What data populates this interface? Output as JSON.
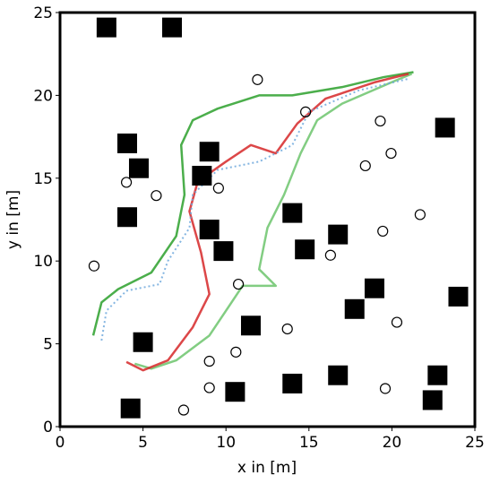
{
  "chart_data": {
    "type": "scatter",
    "x_label": "x in [m]",
    "y_label": "y in [m]",
    "xlim": [
      0,
      25
    ],
    "ylim": [
      0,
      25
    ],
    "xticks": [
      0,
      5,
      10,
      15,
      20,
      25
    ],
    "yticks": [
      0,
      5,
      10,
      15,
      20,
      25
    ],
    "squares": {
      "color": "#000000",
      "x": [
        2.8,
        6.75,
        4.05,
        4.75,
        9.0,
        8.55,
        4.05,
        9.0,
        9.85,
        14.0,
        14.75,
        16.75,
        23.2,
        18.95,
        17.75,
        24.0,
        11.5,
        5.0,
        14.0,
        16.75,
        10.55,
        22.75,
        22.45,
        4.25
      ],
      "y": [
        24.1,
        24.1,
        17.1,
        15.6,
        16.6,
        15.15,
        12.65,
        11.9,
        10.6,
        12.9,
        10.7,
        11.6,
        18.05,
        8.35,
        7.1,
        7.85,
        6.1,
        5.1,
        2.6,
        3.1,
        2.1,
        3.1,
        1.6,
        1.1
      ]
    },
    "circles": {
      "color": "#000000",
      "x": [
        11.9,
        14.8,
        19.3,
        19.95,
        18.4,
        4.0,
        5.8,
        9.55,
        21.7,
        19.45,
        16.3,
        2.05,
        10.75,
        13.7,
        20.3,
        10.6,
        9.0,
        9.0,
        19.6,
        7.45
      ],
      "y": [
        20.95,
        19.0,
        18.45,
        16.5,
        15.75,
        14.75,
        13.95,
        14.4,
        12.8,
        11.8,
        10.35,
        9.7,
        8.6,
        5.9,
        6.3,
        4.5,
        3.95,
        2.35,
        2.3,
        1.0
      ]
    },
    "series": [
      {
        "color": "#2ca02c",
        "style": "solid",
        "x": [
          2.0,
          2.5,
          3.5,
          5.5,
          7.0,
          7.5,
          7.3,
          8.0,
          9.5,
          12.0,
          14.0,
          17.0,
          19.5,
          21.3
        ],
        "y": [
          5.5,
          7.5,
          8.3,
          9.3,
          11.5,
          14.0,
          17.0,
          18.5,
          19.2,
          20.0,
          20.0,
          20.5,
          21.1,
          21.4
        ]
      },
      {
        "color": "#6cc46c",
        "style": "solid",
        "x": [
          4.5,
          5.5,
          7.0,
          9.0,
          10.0,
          11.0,
          13.0,
          12.0,
          12.5,
          13.5,
          14.5,
          15.5,
          17.0,
          20.0,
          21.2
        ],
        "y": [
          3.8,
          3.5,
          4.0,
          5.5,
          7.0,
          8.5,
          8.5,
          9.5,
          12.0,
          14.0,
          16.5,
          18.5,
          19.5,
          20.8,
          21.3
        ]
      },
      {
        "color": "#d62728",
        "style": "solid",
        "x": [
          4.0,
          5.0,
          6.5,
          8.0,
          9.0,
          8.5,
          7.8,
          8.3,
          10.0,
          11.5,
          13.0,
          14.3,
          16.0,
          19.0,
          21.0
        ],
        "y": [
          3.9,
          3.4,
          4.0,
          6.0,
          8.0,
          10.5,
          13.0,
          14.8,
          16.0,
          17.0,
          16.5,
          18.3,
          19.8,
          20.8,
          21.3
        ]
      },
      {
        "color": "#6fa8dc",
        "style": "dotted",
        "x": [
          2.5,
          2.8,
          4.0,
          6.0,
          6.5,
          7.8,
          8.0,
          9.5,
          12.0,
          14.0,
          15.0,
          18.0,
          21.0
        ],
        "y": [
          5.2,
          7.0,
          8.2,
          8.6,
          10.0,
          12.0,
          14.0,
          15.5,
          16.0,
          17.0,
          19.0,
          20.3,
          21.0
        ]
      }
    ]
  }
}
